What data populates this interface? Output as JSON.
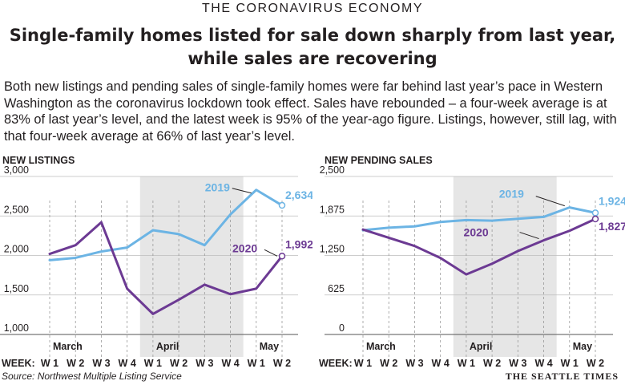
{
  "kicker": "THE CORONAVIRUS ECONOMY",
  "headline": "Single-family homes listed for sale down sharply from last year, while sales are recovering",
  "dek": "Both new listings and pending sales of single-family homes were far behind last year’s pace in Western Washington as the coronavirus lockdown took effect. Sales have rebounded – a four-week average is at 83% of last year’s level, and the latest week is 95% of the year-ago figure. Listings, however, still lag, with that four-week average at 66% of last year’s level.",
  "source": "Source: Northwest Multiple Listing Service",
  "credit": "THE SEATTLE TIMES",
  "colors": {
    "series_2019": "#6cb4e4",
    "series_2020": "#6c3a93",
    "april_shade": "#e6e6e6"
  },
  "chart_data": [
    {
      "type": "line",
      "title": "NEW LISTINGS",
      "week_label": "WEEK:",
      "categories": [
        "W 1",
        "W 2",
        "W 3",
        "W 4",
        "W 1",
        "W 2",
        "W 3",
        "W 4",
        "W 1",
        "W 2"
      ],
      "months": [
        {
          "label": "March",
          "start_index": 0
        },
        {
          "label": "April",
          "start_index": 4
        },
        {
          "label": "May",
          "start_index": 8
        }
      ],
      "shaded_range": [
        4,
        8
      ],
      "ylim": [
        1000,
        3000
      ],
      "yticks": [
        "1,000",
        "1,500",
        "2,000",
        "2,500",
        "3,000"
      ],
      "ytick_values": [
        1000,
        1500,
        2000,
        2500,
        3000
      ],
      "series": [
        {
          "name": "2019",
          "values": [
            1940,
            1970,
            2050,
            2100,
            2320,
            2270,
            2130,
            2520,
            2830,
            2634
          ],
          "end_label": "2,634"
        },
        {
          "name": "2020",
          "values": [
            2020,
            2130,
            2420,
            1580,
            1260,
            1440,
            1630,
            1510,
            1580,
            1992
          ],
          "end_label": "1,992"
        }
      ]
    },
    {
      "type": "line",
      "title": "NEW PENDING SALES",
      "week_label": "WEEK:",
      "categories": [
        "W 1",
        "W 2",
        "W 3",
        "W 4",
        "W 1",
        "W 2",
        "W 3",
        "W 4",
        "W 1",
        "W 2"
      ],
      "months": [
        {
          "label": "March",
          "start_index": 0
        },
        {
          "label": "April",
          "start_index": 4
        },
        {
          "label": "May",
          "start_index": 8
        }
      ],
      "shaded_range": [
        4,
        8
      ],
      "ylim": [
        0,
        2500
      ],
      "yticks": [
        "0",
        "625",
        "1,250",
        "1,875",
        "2,500"
      ],
      "ytick_values": [
        0,
        625,
        1250,
        1875,
        2500
      ],
      "series": [
        {
          "name": "2019",
          "values": [
            1650,
            1690,
            1710,
            1780,
            1810,
            1800,
            1830,
            1860,
            2010,
            1924
          ],
          "end_label": "1,924"
        },
        {
          "name": "2020",
          "values": [
            1660,
            1530,
            1400,
            1210,
            950,
            1120,
            1320,
            1490,
            1640,
            1827
          ],
          "end_label": "1,827"
        }
      ]
    }
  ]
}
